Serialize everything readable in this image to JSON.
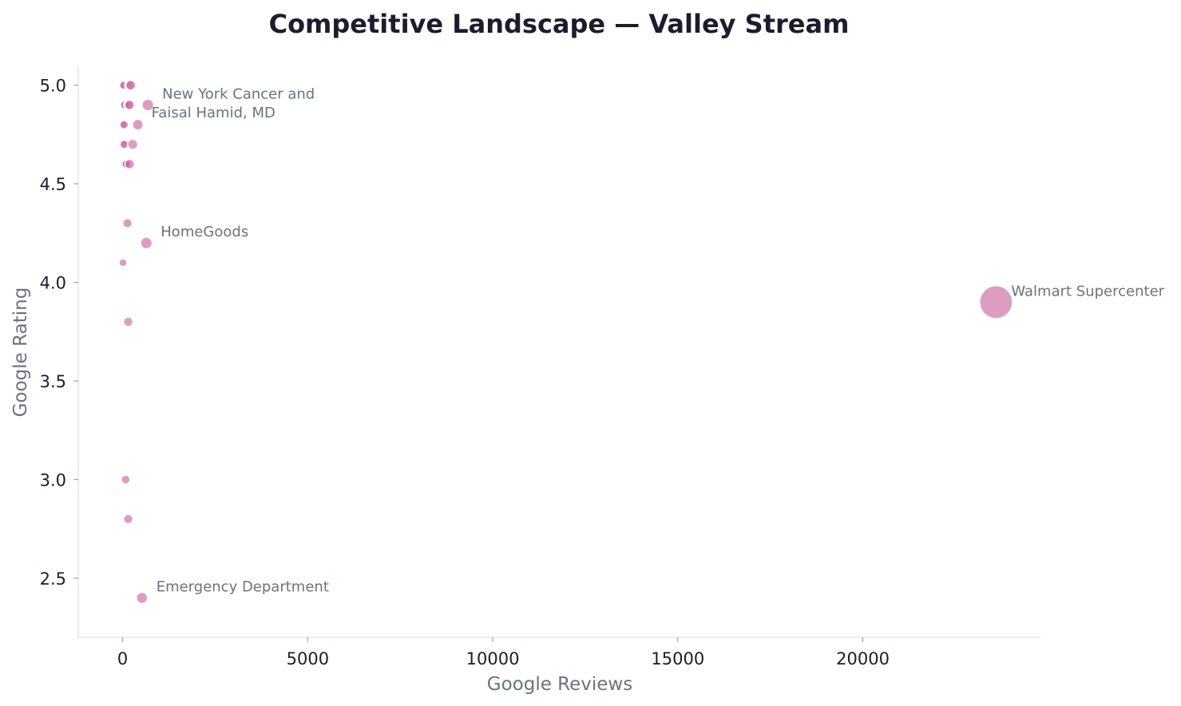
{
  "chart_data": {
    "type": "scatter",
    "title": "Competitive Landscape — Valley Stream",
    "xlabel": "Google Reviews",
    "ylabel": "Google Rating",
    "xlim": [
      -1200,
      24800
    ],
    "ylim": [
      2.2,
      5.1
    ],
    "x_ticks": [
      0,
      5000,
      10000,
      15000,
      20000
    ],
    "y_ticks": [
      2.5,
      3.0,
      3.5,
      4.0,
      4.5,
      5.0
    ],
    "y_tick_labels": [
      "2.5",
      "3.0",
      "3.5",
      "4.0",
      "4.5",
      "5.0"
    ],
    "grid": false,
    "marker_color": "#c8619b",
    "marker_edge_color": "#ffffff",
    "points": [
      {
        "x": 10,
        "y": 5.0
      },
      {
        "x": 30,
        "y": 5.0
      },
      {
        "x": 180,
        "y": 5.0
      },
      {
        "x": 220,
        "y": 5.0
      },
      {
        "x": 20,
        "y": 4.9
      },
      {
        "x": 60,
        "y": 4.9
      },
      {
        "x": 150,
        "y": 4.9
      },
      {
        "x": 190,
        "y": 4.9
      },
      {
        "x": 680,
        "y": 4.9
      },
      {
        "x": 15,
        "y": 4.8
      },
      {
        "x": 40,
        "y": 4.8
      },
      {
        "x": 410,
        "y": 4.8
      },
      {
        "x": 20,
        "y": 4.7
      },
      {
        "x": 45,
        "y": 4.7
      },
      {
        "x": 270,
        "y": 4.7
      },
      {
        "x": 60,
        "y": 4.6
      },
      {
        "x": 110,
        "y": 4.6
      },
      {
        "x": 190,
        "y": 4.6
      },
      {
        "x": 130,
        "y": 4.3
      },
      {
        "x": 640,
        "y": 4.2
      },
      {
        "x": 10,
        "y": 4.1
      },
      {
        "x": 23600,
        "y": 3.9
      },
      {
        "x": 150,
        "y": 3.8
      },
      {
        "x": 80,
        "y": 3.0
      },
      {
        "x": 150,
        "y": 2.8
      },
      {
        "x": 520,
        "y": 2.4
      }
    ],
    "annotations": [
      {
        "text": "New York Cancer and",
        "x": 680,
        "y": 4.9
      },
      {
        "text": "Faisal Hamid, MD",
        "x": 410,
        "y": 4.8
      },
      {
        "text": "HomeGoods",
        "x": 640,
        "y": 4.2
      },
      {
        "text": "Walmart Supercenter",
        "x": 23600,
        "y": 3.9
      },
      {
        "text": "Emergency Department",
        "x": 520,
        "y": 2.4
      }
    ]
  }
}
